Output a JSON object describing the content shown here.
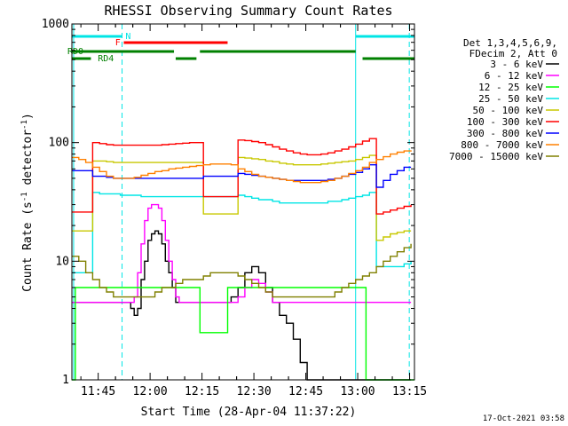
{
  "colors": {
    "background": "#ffffff",
    "axis": "#000000",
    "night": "#00e5e5",
    "flare": "#ff0000",
    "decimation": "#008000",
    "bands": [
      "#000000",
      "#ff00ff",
      "#00ff00",
      "#00e5e5",
      "#c8c800",
      "#ff0000",
      "#0000ff",
      "#ff8000",
      "#808000"
    ]
  },
  "chart_data": {
    "type": "line",
    "title": "RHESSI Observing Summary Count Rates",
    "xlabel": "Start Time (28-Apr-04 11:37:22)",
    "ylabel": "Count Rate (s",
    "ylabel_sup": "-1",
    "ylabel_rest": " detector",
    "ylabel_sup2": "-1",
    "ylabel_end": ")",
    "y_scale": "log",
    "ylim": [
      1,
      1000
    ],
    "y_ticks": [
      1,
      10,
      100,
      1000
    ],
    "y_tick_labels": [
      "1",
      "10",
      "100",
      "1000"
    ],
    "x_unit": "minutes after 11:37:22",
    "xlim": [
      0,
      99
    ],
    "x_ticks": [
      "11:45",
      "12:00",
      "12:15",
      "12:30",
      "12:45",
      "13:00",
      "13:15"
    ],
    "x_tick_minutes": [
      7.6,
      22.6,
      37.6,
      52.6,
      67.6,
      82.6,
      97.6
    ],
    "legend_position": "right",
    "legend_header": [
      "Det 1,3,4,5,6,9,",
      "FDecim 2, Att 0"
    ],
    "series": [
      {
        "name": "3 - 6 keV",
        "x": [
          0,
          3,
          9,
          13,
          15,
          17,
          18,
          19,
          20,
          21,
          22,
          23,
          24,
          25,
          26,
          27,
          28,
          29,
          30,
          31,
          32,
          33,
          34,
          35,
          36,
          38,
          40,
          42,
          44,
          46,
          48,
          50,
          52,
          54,
          56,
          58,
          60,
          62,
          64,
          66,
          68,
          70,
          72,
          74,
          76,
          78,
          80,
          82,
          84,
          86,
          88,
          90,
          92,
          94,
          96,
          98
        ],
        "y": [
          4.5,
          4.5,
          4.5,
          4.5,
          4.5,
          4,
          3.5,
          4,
          7,
          10,
          15,
          17,
          18,
          17,
          14,
          10,
          8,
          6,
          4.5,
          4.5,
          4.5,
          4.5,
          4.5,
          4.5,
          4.5,
          4.5,
          4.5,
          4.5,
          4.5,
          5,
          6,
          8,
          9,
          8,
          6,
          4.5,
          3.5,
          3,
          2.2,
          1.4,
          1,
          1,
          1,
          1,
          1,
          1,
          1,
          1,
          1,
          1,
          1,
          1,
          1,
          1,
          1,
          1
        ]
      },
      {
        "name": "6 - 12 keV",
        "x": [
          0,
          3,
          9,
          13,
          15,
          17,
          18,
          19,
          20,
          21,
          22,
          23,
          24,
          25,
          26,
          27,
          28,
          29,
          30,
          31,
          32,
          33,
          34,
          35,
          36,
          38,
          40,
          42,
          44,
          46,
          48,
          50,
          52,
          54,
          56,
          58,
          60,
          62,
          64,
          66,
          68,
          70,
          72,
          74,
          76,
          78,
          80,
          82,
          84,
          86,
          88,
          90,
          92,
          94,
          96,
          98
        ],
        "y": [
          4.5,
          4.5,
          4.5,
          4.5,
          4.5,
          4.5,
          5,
          8,
          14,
          22,
          28,
          30,
          30,
          28,
          22,
          15,
          10,
          7,
          5,
          4.5,
          4.5,
          4.5,
          4.5,
          4.5,
          4.5,
          4.5,
          4.5,
          4.5,
          4.5,
          4.5,
          5,
          6,
          7,
          6.5,
          5.5,
          4.5,
          4.5,
          4.5,
          4.5,
          4.5,
          4.5,
          4.5,
          4.5,
          4.5,
          4.5,
          4.5,
          4.5,
          4.5,
          4.5,
          4.5,
          4.5,
          4.5,
          4.5,
          4.5,
          4.5,
          4.5
        ]
      },
      {
        "name": "12 - 25 keV",
        "x": [
          0,
          1,
          2,
          3,
          5,
          7,
          9,
          11,
          13,
          15,
          17,
          19,
          21,
          23,
          25,
          27,
          29,
          31,
          33,
          35,
          37,
          39,
          41,
          43,
          45,
          47,
          49,
          51,
          53,
          55,
          57,
          59,
          61,
          63,
          65,
          67,
          69,
          71,
          73,
          75,
          77,
          79,
          81,
          83,
          85,
          87,
          89,
          91,
          93,
          95,
          97,
          99
        ],
        "y": [
          1,
          6,
          6,
          6,
          6,
          6,
          6,
          6,
          6,
          6,
          6,
          6,
          6,
          6,
          6,
          6,
          6,
          6,
          6,
          6,
          2.5,
          2.5,
          2.5,
          2.5,
          6,
          6,
          6,
          6,
          6,
          6,
          6,
          6,
          6,
          6,
          6,
          6,
          6,
          6,
          6,
          6,
          6,
          6,
          6,
          6,
          1,
          1,
          1,
          1,
          1,
          1,
          1,
          1
        ]
      },
      {
        "name": "25 - 50 keV",
        "x": [
          0,
          2,
          4,
          6,
          8,
          10,
          12,
          14,
          16,
          18,
          20,
          22,
          24,
          26,
          28,
          30,
          32,
          34,
          36,
          38,
          40,
          42,
          44,
          46,
          48,
          50,
          52,
          54,
          56,
          58,
          60,
          62,
          64,
          66,
          68,
          70,
          72,
          74,
          76,
          78,
          80,
          82,
          84,
          86,
          88,
          90,
          92,
          94,
          96,
          98
        ],
        "y": [
          8,
          8,
          8,
          38,
          37,
          37,
          37,
          36,
          36,
          36,
          35,
          35,
          35,
          35,
          35,
          35,
          35,
          35,
          35,
          35,
          35,
          35,
          35,
          35,
          36,
          35,
          34,
          33,
          33,
          32,
          31,
          31,
          31,
          31,
          31,
          31,
          31,
          32,
          32,
          33,
          34,
          35,
          36,
          38,
          9,
          9,
          9,
          9,
          9.5,
          10
        ]
      },
      {
        "name": "50 - 100 keV",
        "x": [
          0,
          2,
          4,
          6,
          8,
          10,
          12,
          14,
          16,
          18,
          20,
          22,
          24,
          26,
          28,
          30,
          32,
          34,
          36,
          38,
          40,
          42,
          44,
          46,
          48,
          50,
          52,
          54,
          56,
          58,
          60,
          62,
          64,
          66,
          68,
          70,
          72,
          74,
          76,
          78,
          80,
          82,
          84,
          86,
          88,
          90,
          92,
          94,
          96,
          98
        ],
        "y": [
          18,
          18,
          18,
          70,
          70,
          69,
          68,
          68,
          68,
          68,
          68,
          68,
          68,
          68,
          68,
          68,
          68,
          68,
          68,
          25,
          25,
          25,
          25,
          25,
          75,
          74,
          73,
          72,
          70,
          69,
          67,
          66,
          65,
          65,
          65,
          65,
          66,
          67,
          68,
          69,
          70,
          72,
          75,
          78,
          15,
          16,
          17,
          17.5,
          18,
          18
        ]
      },
      {
        "name": "100 - 300 keV",
        "x": [
          0,
          2,
          4,
          6,
          8,
          10,
          12,
          14,
          16,
          18,
          20,
          22,
          24,
          26,
          28,
          30,
          32,
          34,
          36,
          38,
          40,
          42,
          44,
          46,
          48,
          50,
          52,
          54,
          56,
          58,
          60,
          62,
          64,
          66,
          68,
          70,
          72,
          74,
          76,
          78,
          80,
          82,
          84,
          86,
          88,
          90,
          92,
          94,
          96,
          98
        ],
        "y": [
          26,
          26,
          26,
          100,
          98,
          96,
          95,
          95,
          95,
          95,
          95,
          95,
          95,
          96,
          97,
          98,
          99,
          100,
          100,
          35,
          35,
          35,
          35,
          35,
          105,
          104,
          102,
          100,
          96,
          92,
          88,
          85,
          82,
          80,
          79,
          79,
          80,
          82,
          85,
          88,
          92,
          97,
          103,
          108,
          25,
          26,
          27,
          28,
          29,
          30
        ]
      },
      {
        "name": "300 - 800 keV",
        "x": [
          0,
          2,
          4,
          6,
          8,
          10,
          12,
          14,
          16,
          18,
          20,
          22,
          24,
          26,
          28,
          30,
          32,
          34,
          36,
          38,
          40,
          42,
          44,
          46,
          48,
          50,
          52,
          54,
          56,
          58,
          60,
          62,
          64,
          66,
          68,
          70,
          72,
          74,
          76,
          78,
          80,
          82,
          84,
          86,
          88,
          90,
          92,
          94,
          96,
          98
        ],
        "y": [
          58,
          58,
          58,
          52,
          52,
          51,
          50,
          50,
          50,
          50,
          50,
          50,
          50,
          50,
          50,
          50,
          50,
          50,
          50,
          52,
          52,
          52,
          52,
          52,
          55,
          54,
          53,
          52,
          51,
          50,
          49,
          48,
          48,
          48,
          48,
          48,
          48,
          49,
          50,
          52,
          54,
          56,
          60,
          65,
          42,
          48,
          54,
          58,
          62,
          62
        ]
      },
      {
        "name": "800 - 7000 keV",
        "x": [
          0,
          2,
          4,
          6,
          8,
          10,
          12,
          14,
          16,
          18,
          20,
          22,
          24,
          26,
          28,
          30,
          32,
          34,
          36,
          38,
          40,
          42,
          44,
          46,
          48,
          50,
          52,
          54,
          56,
          58,
          60,
          62,
          64,
          66,
          68,
          70,
          72,
          74,
          76,
          78,
          80,
          82,
          84,
          86,
          88,
          90,
          92,
          94,
          96,
          98
        ],
        "y": [
          75,
          72,
          68,
          62,
          57,
          52,
          50,
          50,
          50,
          51,
          53,
          55,
          57,
          58,
          60,
          61,
          62,
          63,
          64,
          65,
          66,
          66,
          66,
          65,
          60,
          57,
          54,
          52,
          51,
          50,
          49,
          48,
          47,
          46,
          46,
          46,
          47,
          48,
          50,
          52,
          55,
          58,
          62,
          68,
          72,
          76,
          80,
          83,
          85,
          84
        ]
      },
      {
        "name": "7000 - 15000 keV",
        "x": [
          0,
          2,
          4,
          6,
          8,
          10,
          12,
          14,
          16,
          18,
          20,
          22,
          24,
          26,
          28,
          30,
          32,
          34,
          36,
          38,
          40,
          42,
          44,
          46,
          48,
          50,
          52,
          54,
          56,
          58,
          60,
          62,
          64,
          66,
          68,
          70,
          72,
          74,
          76,
          78,
          80,
          82,
          84,
          86,
          88,
          90,
          92,
          94,
          96,
          98
        ],
        "y": [
          11,
          10,
          8,
          7,
          6,
          5.5,
          5,
          5,
          5,
          5,
          5,
          5,
          5.5,
          6,
          6,
          6.5,
          7,
          7,
          7,
          7.5,
          8,
          8,
          8,
          8,
          7.5,
          7,
          6.5,
          6,
          5.5,
          5,
          5,
          5,
          5,
          5,
          5,
          5,
          5,
          5,
          5.5,
          6,
          6.5,
          7,
          7.5,
          8,
          9,
          10,
          11,
          12,
          13,
          14
        ]
      }
    ],
    "annotations": {
      "night_label": "N",
      "flare_label": "F",
      "decim_labels": [
        "RD0",
        "RD4"
      ],
      "night_intervals": [
        [
          0,
          14.5
        ],
        [
          82,
          99
        ]
      ],
      "flare_intervals": [
        [
          15,
          45
        ]
      ],
      "decim_row1": [
        [
          0,
          29.5
        ],
        [
          37,
          82
        ]
      ],
      "decim_row2": [
        [
          0,
          5.5
        ],
        [
          30,
          36
        ],
        [
          84,
          99
        ]
      ]
    },
    "grid": false
  },
  "footer_stamp": "17-Oct-2021 03:58"
}
